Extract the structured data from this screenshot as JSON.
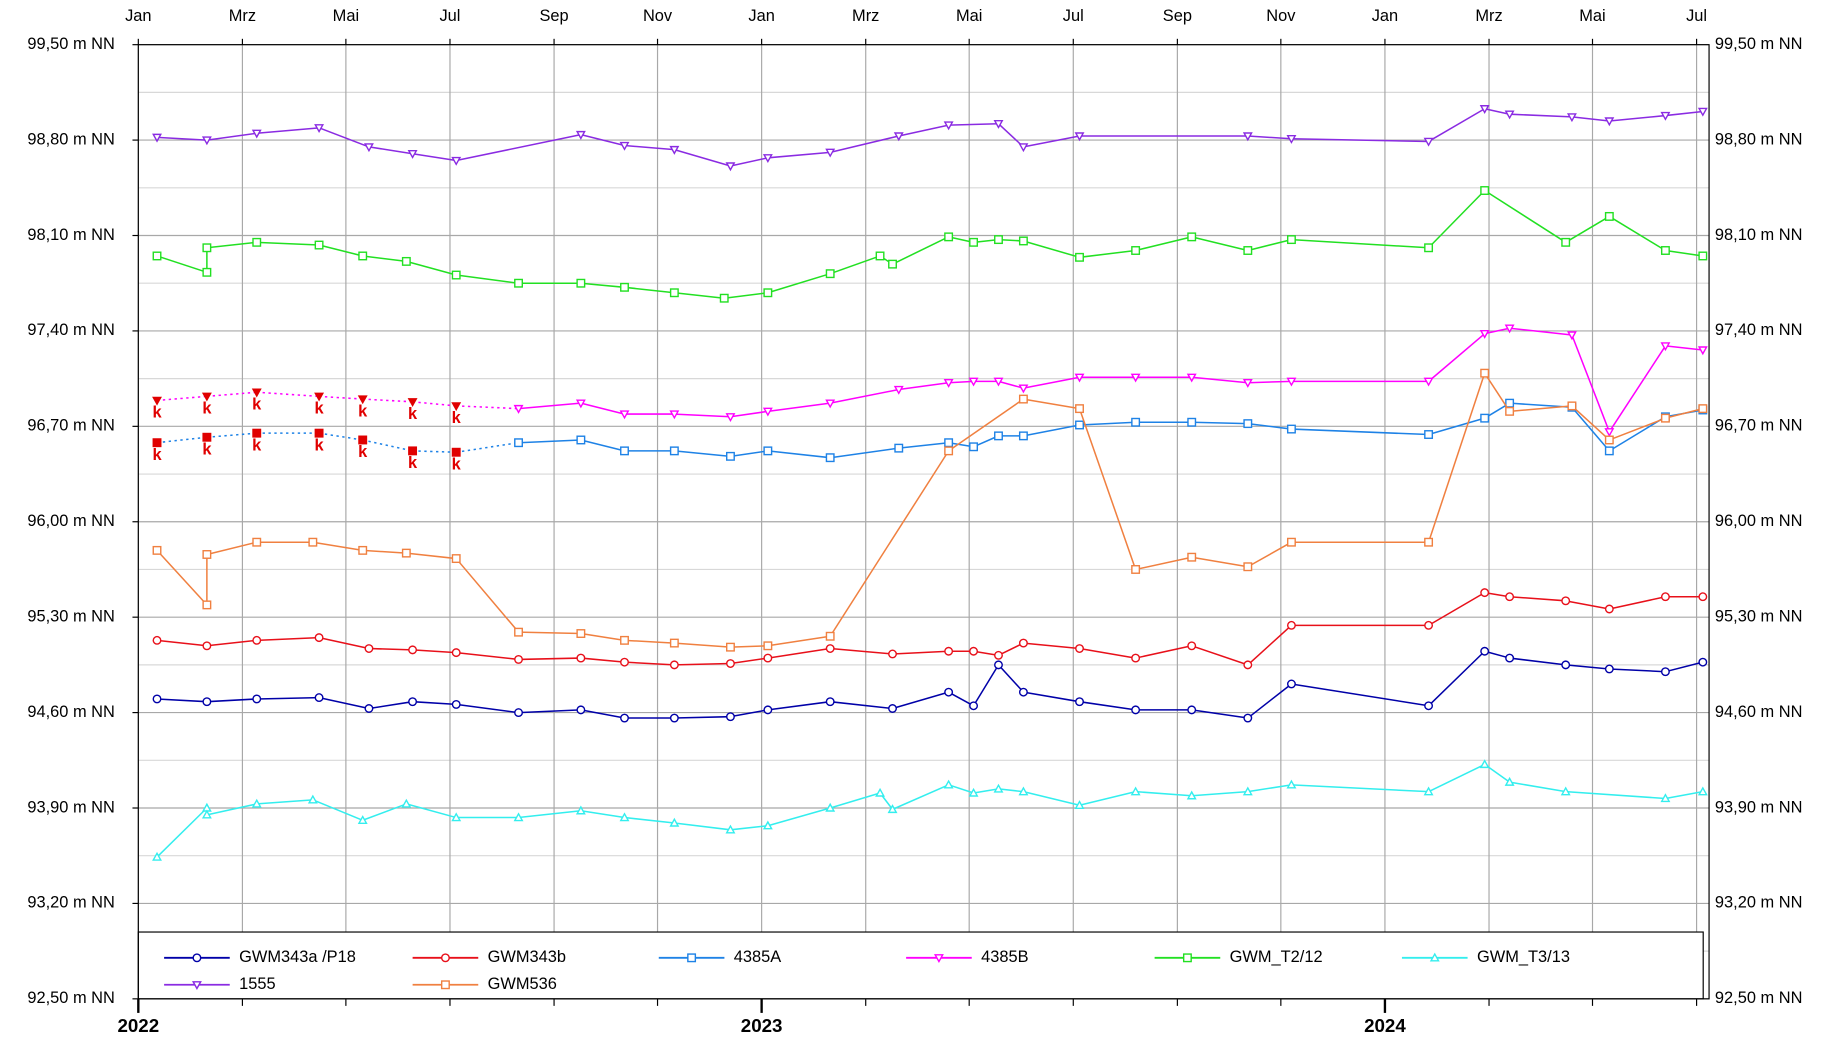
{
  "chart_data": {
    "type": "line",
    "xlim": [
      2022,
      2024.52
    ],
    "xticks": [
      {
        "value": 2022,
        "label": "Jan"
      },
      {
        "value": 2022.167,
        "label": "Mrz"
      },
      {
        "value": 2022.333,
        "label": "Mai"
      },
      {
        "value": 2022.5,
        "label": "Jul"
      },
      {
        "value": 2022.667,
        "label": "Sep"
      },
      {
        "value": 2022.833,
        "label": "Nov"
      },
      {
        "value": 2023,
        "label": "Jan"
      },
      {
        "value": 2023.167,
        "label": "Mrz"
      },
      {
        "value": 2023.333,
        "label": "Mai"
      },
      {
        "value": 2023.5,
        "label": "Jul"
      },
      {
        "value": 2023.667,
        "label": "Sep"
      },
      {
        "value": 2023.833,
        "label": "Nov"
      },
      {
        "value": 2024,
        "label": "Jan"
      },
      {
        "value": 2024.167,
        "label": "Mrz"
      },
      {
        "value": 2024.333,
        "label": "Mai"
      },
      {
        "value": 2024.5,
        "label": "Jul"
      }
    ],
    "year_ticks": [
      2022,
      2023,
      2024
    ],
    "ylim": [
      92.5,
      99.5
    ],
    "yticks": [
      {
        "value": 92.5,
        "label": "92,50 m NN"
      },
      {
        "value": 93.2,
        "label": "93,20 m NN"
      },
      {
        "value": 93.9,
        "label": "93,90 m NN"
      },
      {
        "value": 94.6,
        "label": "94,60 m NN"
      },
      {
        "value": 95.3,
        "label": "95,30 m NN"
      },
      {
        "value": 96,
        "label": "96,00 m NN"
      },
      {
        "value": 96.7,
        "label": "96,70 m NN"
      },
      {
        "value": 97.4,
        "label": "97,40 m NN"
      },
      {
        "value": 98.1,
        "label": "98,10 m NN"
      },
      {
        "value": 98.8,
        "label": "98,80 m NN"
      },
      {
        "value": 99.5,
        "label": "99,50 m NN"
      }
    ],
    "grid": true,
    "minor_grid": true,
    "right_axis_labels": true,
    "point_label_color": "#e00000",
    "series": [
      {
        "name": "GWM343a /P18",
        "color": "#0000a8",
        "marker": "circle",
        "x": [
          2022.03,
          2022.11,
          2022.19,
          2022.29,
          2022.37,
          2022.44,
          2022.51,
          2022.61,
          2022.71,
          2022.78,
          2022.86,
          2022.95,
          2023.01,
          2023.11,
          2023.21,
          2023.3,
          2023.34,
          2023.38,
          2023.42,
          2023.51,
          2023.6,
          2023.69,
          2023.78,
          2023.85,
          2024.07,
          2024.16,
          2024.2,
          2024.29,
          2024.36,
          2024.45,
          2024.51
        ],
        "values": [
          94.7,
          94.68,
          94.7,
          94.71,
          94.63,
          94.68,
          94.66,
          94.6,
          94.62,
          94.56,
          94.56,
          94.57,
          94.62,
          94.68,
          94.63,
          94.75,
          94.65,
          94.95,
          94.75,
          94.68,
          94.62,
          94.62,
          94.56,
          94.81,
          94.65,
          95.05,
          95.0,
          94.95,
          94.92,
          94.9,
          94.97
        ]
      },
      {
        "name": "GWM343b",
        "color": "#e8101a",
        "marker": "circle",
        "x": [
          2022.03,
          2022.11,
          2022.19,
          2022.29,
          2022.37,
          2022.44,
          2022.51,
          2022.61,
          2022.71,
          2022.78,
          2022.86,
          2022.95,
          2023.01,
          2023.11,
          2023.21,
          2023.3,
          2023.34,
          2023.38,
          2023.42,
          2023.51,
          2023.6,
          2023.69,
          2023.78,
          2023.85,
          2024.07,
          2024.16,
          2024.2,
          2024.29,
          2024.36,
          2024.45,
          2024.51
        ],
        "values": [
          95.13,
          95.09,
          95.13,
          95.15,
          95.07,
          95.06,
          95.04,
          94.99,
          95.0,
          94.97,
          94.95,
          94.96,
          95.0,
          95.07,
          95.03,
          95.05,
          95.05,
          95.02,
          95.11,
          95.07,
          95.0,
          95.09,
          94.95,
          95.24,
          95.24,
          95.48,
          95.45,
          95.42,
          95.36,
          95.45,
          95.45
        ]
      },
      {
        "name": "4385A",
        "color": "#1e82e6",
        "marker": "square",
        "x": [
          2022.03,
          2022.11,
          2022.19,
          2022.29,
          2022.36,
          2022.44,
          2022.51,
          2022.61,
          2022.71,
          2022.78,
          2022.86,
          2022.95,
          2023.01,
          2023.11,
          2023.22,
          2023.3,
          2023.34,
          2023.38,
          2023.42,
          2023.51,
          2023.6,
          2023.69,
          2023.78,
          2023.85,
          2024.07,
          2024.16,
          2024.2,
          2024.3,
          2024.36,
          2024.45,
          2024.51
        ],
        "values": [
          96.58,
          96.62,
          96.65,
          96.65,
          96.6,
          96.52,
          96.51,
          96.58,
          96.6,
          96.52,
          96.52,
          96.48,
          96.52,
          96.47,
          96.54,
          96.58,
          96.55,
          96.63,
          96.63,
          96.71,
          96.73,
          96.73,
          96.72,
          96.68,
          96.64,
          96.76,
          96.87,
          96.84,
          96.52,
          96.77,
          96.82
        ],
        "point_labels": [
          "k",
          "k",
          "k",
          "k",
          "k",
          "k",
          "k",
          null,
          null,
          null,
          null,
          null,
          null,
          null,
          null,
          null,
          null,
          null,
          null,
          null,
          null,
          null,
          null,
          null,
          null,
          null,
          null,
          null,
          null,
          null,
          null
        ]
      },
      {
        "name": "4385B",
        "color": "#ff00ff",
        "marker": "triangle-down",
        "x": [
          2022.03,
          2022.11,
          2022.19,
          2022.29,
          2022.36,
          2022.44,
          2022.51,
          2022.61,
          2022.71,
          2022.78,
          2022.86,
          2022.95,
          2023.01,
          2023.11,
          2023.22,
          2023.3,
          2023.34,
          2023.38,
          2023.42,
          2023.51,
          2023.6,
          2023.69,
          2023.78,
          2023.85,
          2024.07,
          2024.16,
          2024.2,
          2024.3,
          2024.36,
          2024.45,
          2024.51
        ],
        "values": [
          96.89,
          96.92,
          96.95,
          96.92,
          96.9,
          96.88,
          96.85,
          96.83,
          96.87,
          96.79,
          96.79,
          96.77,
          96.81,
          96.87,
          96.97,
          97.02,
          97.03,
          97.03,
          96.98,
          97.06,
          97.06,
          97.06,
          97.02,
          97.03,
          97.03,
          97.38,
          97.42,
          97.37,
          96.66,
          97.29,
          97.26
        ],
        "point_labels": [
          "k",
          "k",
          "k",
          "k",
          "k",
          "k",
          "k",
          null,
          null,
          null,
          null,
          null,
          null,
          null,
          null,
          null,
          null,
          null,
          null,
          null,
          null,
          null,
          null,
          null,
          null,
          null,
          null,
          null,
          null,
          null,
          null
        ]
      },
      {
        "name": "GWM_T2/12",
        "color": "#22e022",
        "marker": "square",
        "x": [
          2022.03,
          2022.11,
          2022.11,
          2022.19,
          2022.29,
          2022.36,
          2022.43,
          2022.51,
          2022.61,
          2022.71,
          2022.78,
          2022.86,
          2022.94,
          2023.01,
          2023.11,
          2023.19,
          2023.21,
          2023.3,
          2023.34,
          2023.38,
          2023.42,
          2023.51,
          2023.6,
          2023.69,
          2023.78,
          2023.85,
          2024.07,
          2024.16,
          2024.29,
          2024.36,
          2024.45,
          2024.51
        ],
        "values": [
          97.95,
          97.83,
          98.01,
          98.05,
          98.03,
          97.95,
          97.91,
          97.81,
          97.75,
          97.75,
          97.72,
          97.68,
          97.64,
          97.68,
          97.82,
          97.95,
          97.89,
          98.09,
          98.05,
          98.07,
          98.06,
          97.94,
          97.99,
          98.09,
          97.99,
          98.07,
          98.01,
          98.43,
          98.05,
          98.24,
          97.99,
          97.95
        ]
      },
      {
        "name": "GWM_T3/13",
        "color": "#33eeee",
        "marker": "triangle-up",
        "x": [
          2022.03,
          2022.11,
          2022.11,
          2022.19,
          2022.28,
          2022.36,
          2022.43,
          2022.51,
          2022.61,
          2022.71,
          2022.78,
          2022.86,
          2022.95,
          2023.01,
          2023.11,
          2023.19,
          2023.21,
          2023.3,
          2023.34,
          2023.38,
          2023.42,
          2023.51,
          2023.6,
          2023.69,
          2023.78,
          2023.85,
          2024.07,
          2024.16,
          2024.2,
          2024.29,
          2024.45,
          2024.51
        ],
        "values": [
          93.54,
          93.9,
          93.85,
          93.93,
          93.96,
          93.81,
          93.93,
          93.83,
          93.83,
          93.88,
          93.83,
          93.79,
          93.74,
          93.77,
          93.9,
          94.01,
          93.89,
          94.07,
          94.01,
          94.04,
          94.02,
          93.92,
          94.02,
          93.99,
          94.02,
          94.07,
          94.02,
          94.22,
          94.09,
          94.02,
          93.97,
          94.02
        ]
      },
      {
        "name": "1555",
        "color": "#8a2be2",
        "marker": "triangle-down",
        "x": [
          2022.03,
          2022.11,
          2022.19,
          2022.29,
          2022.37,
          2022.44,
          2022.51,
          2022.71,
          2022.78,
          2022.86,
          2022.95,
          2023.01,
          2023.11,
          2023.22,
          2023.3,
          2023.38,
          2023.42,
          2023.51,
          2023.78,
          2023.85,
          2024.07,
          2024.16,
          2024.2,
          2024.3,
          2024.36,
          2024.45,
          2024.51
        ],
        "values": [
          98.82,
          98.8,
          98.85,
          98.89,
          98.75,
          98.7,
          98.65,
          98.84,
          98.76,
          98.73,
          98.61,
          98.67,
          98.71,
          98.83,
          98.91,
          98.92,
          98.75,
          98.83,
          98.83,
          98.81,
          98.79,
          99.03,
          98.99,
          98.97,
          98.94,
          98.98,
          99.01
        ]
      },
      {
        "name": "GWM536",
        "color": "#f08040",
        "marker": "square",
        "x": [
          2022.03,
          2022.11,
          2022.11,
          2022.19,
          2022.28,
          2022.36,
          2022.43,
          2022.51,
          2022.61,
          2022.71,
          2022.78,
          2022.86,
          2022.95,
          2023.01,
          2023.11,
          2023.3,
          2023.42,
          2023.51,
          2023.6,
          2023.69,
          2023.78,
          2023.85,
          2024.07,
          2024.16,
          2024.2,
          2024.3,
          2024.36,
          2024.45,
          2024.51
        ],
        "values": [
          95.79,
          95.39,
          95.76,
          95.85,
          95.85,
          95.79,
          95.77,
          95.73,
          95.19,
          95.18,
          95.13,
          95.11,
          95.08,
          95.09,
          95.16,
          96.52,
          96.9,
          96.83,
          95.65,
          95.74,
          95.67,
          95.85,
          95.85,
          97.09,
          96.81,
          96.85,
          96.6,
          96.76,
          96.83
        ]
      }
    ]
  }
}
